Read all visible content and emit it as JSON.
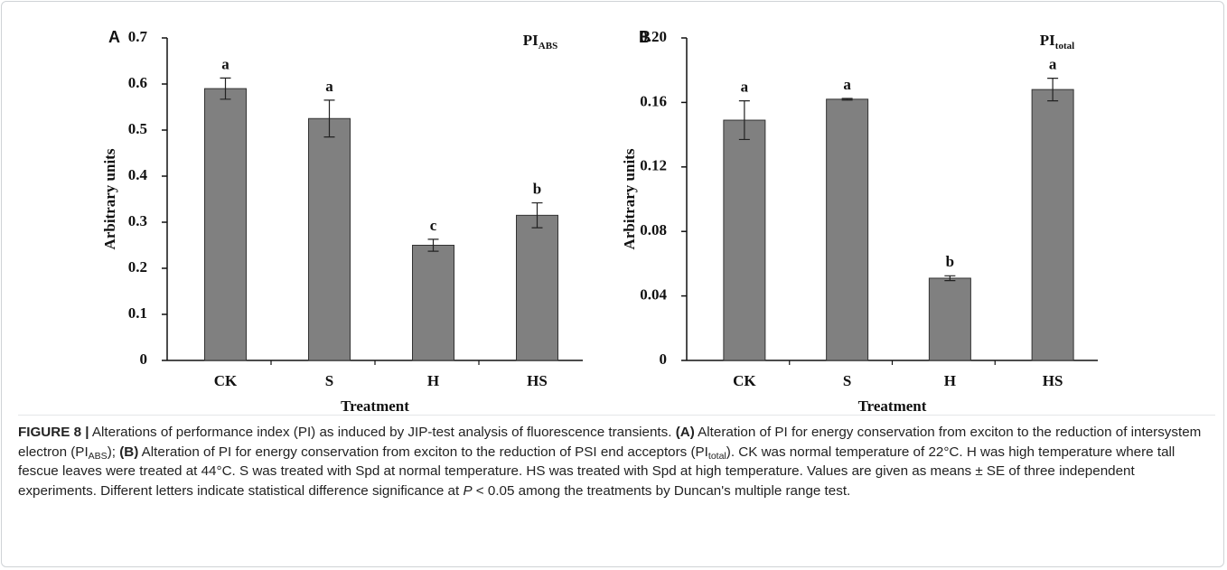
{
  "chart_data": [
    {
      "type": "bar",
      "panel": "A",
      "title": "PI",
      "title_subscript": "ABS",
      "x_label": "Treatment",
      "y_label": "Arbitrary units",
      "categories": [
        "CK",
        "S",
        "H",
        "HS"
      ],
      "values": [
        0.59,
        0.525,
        0.25,
        0.315
      ],
      "errors": [
        0.023,
        0.04,
        0.013,
        0.027
      ],
      "significance": [
        "a",
        "a",
        "c",
        "b"
      ],
      "color": "#808080",
      "ylim": [
        0,
        0.7
      ],
      "yticks": [
        0,
        0.1,
        0.2,
        0.3,
        0.4,
        0.5,
        0.6,
        0.7
      ]
    },
    {
      "type": "bar",
      "panel": "B",
      "title": "PI",
      "title_subscript": "total",
      "x_label": "Treatment",
      "y_label": "Arbitrary units",
      "categories": [
        "CK",
        "S",
        "H",
        "HS"
      ],
      "values": [
        0.149,
        0.162,
        0.051,
        0.168
      ],
      "errors": [
        0.012,
        0.0005,
        0.0015,
        0.007
      ],
      "significance": [
        "a",
        "a",
        "b",
        "a"
      ],
      "color": "#808080",
      "ylim": [
        0,
        0.2
      ],
      "yticks": [
        0,
        0.04,
        0.08,
        0.12,
        0.16,
        {
          "value": 0.2,
          "label": "0.20"
        }
      ]
    }
  ],
  "caption": [
    {
      "text": "FIGURE 8 |",
      "style": "bold"
    },
    {
      "text": " Alterations of performance index (PI) as induced by JIP-test analysis of fluorescence transients. ",
      "style": "normal"
    },
    {
      "text": "(A)",
      "style": "bold"
    },
    {
      "text": " Alteration of PI for energy conservation from exciton to the reduction of intersystem electron (PI",
      "style": "normal"
    },
    {
      "text": "ABS",
      "style": "sub"
    },
    {
      "text": "); ",
      "style": "normal"
    },
    {
      "text": "(B)",
      "style": "bold"
    },
    {
      "text": " Alteration of PI for energy conservation from exciton to the reduction of PSI end acceptors (PI",
      "style": "normal"
    },
    {
      "text": "total",
      "style": "sub"
    },
    {
      "text": "). CK was normal temperature of 22°C. H was high temperature where tall fescue leaves were treated at 44°C. S was treated with Spd at normal temperature. HS was treated with Spd at high temperature. Values are given as means ± SE of three independent experiments. Different letters indicate statistical difference significance at ",
      "style": "normal"
    },
    {
      "text": "P",
      "style": "italic"
    },
    {
      "text": " < 0.05 among the treatments by Duncan's multiple range test.",
      "style": "normal"
    }
  ]
}
